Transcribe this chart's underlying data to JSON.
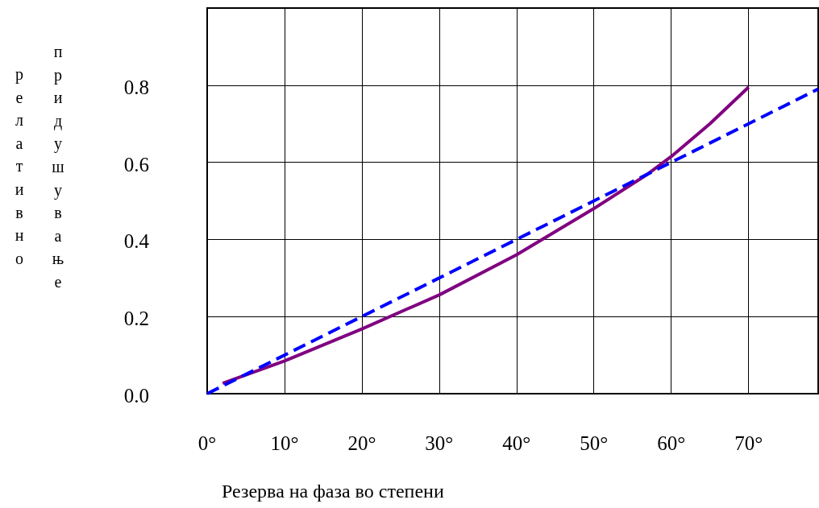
{
  "chart_data": {
    "type": "line",
    "xlabel": "Резерва на фаза во степени",
    "ylabel": "релативно придушување",
    "xlim": [
      0,
      79
    ],
    "ylim": [
      0,
      1
    ],
    "xticks": [
      {
        "value": 0,
        "label": "0°"
      },
      {
        "value": 10,
        "label": "10°"
      },
      {
        "value": 20,
        "label": "20°"
      },
      {
        "value": 30,
        "label": "30°"
      },
      {
        "value": 40,
        "label": "40°"
      },
      {
        "value": 50,
        "label": "50°"
      },
      {
        "value": 60,
        "label": "60°"
      },
      {
        "value": 70,
        "label": "70°"
      }
    ],
    "yticks": [
      {
        "value": 0,
        "label": "0.0"
      },
      {
        "value": 0.2,
        "label": "0.2"
      },
      {
        "value": 0.4,
        "label": "0.4"
      },
      {
        "value": 0.6,
        "label": "0.6"
      },
      {
        "value": 0.8,
        "label": "0.8"
      },
      {
        "value": 1,
        "label": null
      }
    ],
    "grid": true,
    "marker": "none",
    "series": [
      {
        "color": "#800080",
        "line_style": "solid",
        "x": [
          2,
          10,
          20,
          30,
          40,
          50,
          57,
          60,
          65,
          70
        ],
        "values": [
          0.027,
          0.085,
          0.168,
          0.256,
          0.36,
          0.48,
          0.57,
          0.615,
          0.7,
          0.795
        ]
      },
      {
        "color": "#0000ff",
        "line_style": "dashed",
        "x": [
          0,
          79
        ],
        "values": [
          0,
          0.79
        ]
      }
    ]
  }
}
